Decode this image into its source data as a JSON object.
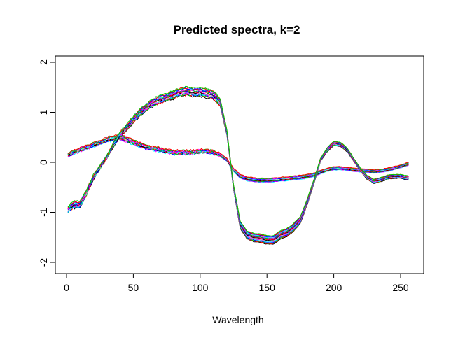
{
  "chart_data": {
    "type": "line",
    "title": "Predicted spectra, k=2",
    "xlabel": "Wavelength",
    "ylabel": "",
    "xlim": [
      0,
      256
    ],
    "ylim": [
      -2.2,
      2.2
    ],
    "xticks": [
      0,
      50,
      100,
      150,
      200,
      250
    ],
    "yticks": [
      -2,
      -1,
      0,
      1,
      2
    ],
    "xtick_labels": [
      "0",
      "50",
      "100",
      "150",
      "200",
      "250"
    ],
    "ytick_labels": [
      "-2",
      "-1",
      "0",
      "1",
      "2"
    ],
    "grid": false,
    "cluster_1": {
      "description": "upper group at wavelength 100, lower group at wavelength 150",
      "x": [
        1,
        5,
        10,
        15,
        20,
        25,
        30,
        35,
        40,
        45,
        50,
        55,
        60,
        65,
        70,
        75,
        80,
        85,
        90,
        95,
        100,
        105,
        110,
        115,
        120,
        125,
        130,
        135,
        140,
        145,
        150,
        155,
        160,
        165,
        170,
        175,
        180,
        185,
        190,
        195,
        200,
        205,
        210,
        215,
        220,
        225,
        230,
        235,
        240,
        245,
        250,
        256
      ],
      "mean": [
        -0.95,
        -0.85,
        -0.85,
        -0.6,
        -0.3,
        -0.1,
        0.1,
        0.35,
        0.55,
        0.7,
        0.85,
        1.0,
        1.1,
        1.2,
        1.25,
        1.3,
        1.35,
        1.4,
        1.42,
        1.4,
        1.4,
        1.38,
        1.35,
        1.2,
        0.6,
        -0.5,
        -1.25,
        -1.45,
        -1.5,
        -1.52,
        -1.55,
        -1.55,
        -1.45,
        -1.4,
        -1.3,
        -1.15,
        -0.8,
        -0.4,
        0.05,
        0.25,
        0.38,
        0.36,
        0.25,
        0.05,
        -0.15,
        -0.3,
        -0.38,
        -0.35,
        -0.3,
        -0.28,
        -0.28,
        -0.32
      ],
      "colors": [
        "#000000",
        "#ff0000",
        "#00cd00",
        "#0000ff",
        "#00ffff",
        "#ff00ff",
        "#bebebe",
        "#000000",
        "#ff0000",
        "#0000ff",
        "#00cd00",
        "#ff00ff",
        "#00ffff",
        "#0000ff",
        "#ff0000",
        "#00cd00"
      ]
    },
    "cluster_2": {
      "description": "lower group at wavelength 100, upper group at wavelength 150",
      "x": [
        1,
        5,
        10,
        15,
        20,
        25,
        30,
        35,
        40,
        45,
        50,
        55,
        60,
        65,
        70,
        75,
        80,
        85,
        90,
        95,
        100,
        105,
        110,
        115,
        120,
        125,
        130,
        135,
        140,
        145,
        150,
        155,
        160,
        165,
        170,
        175,
        180,
        185,
        190,
        195,
        200,
        205,
        210,
        215,
        220,
        225,
        230,
        235,
        240,
        245,
        250,
        256
      ],
      "mean": [
        0.15,
        0.2,
        0.25,
        0.3,
        0.35,
        0.4,
        0.45,
        0.48,
        0.5,
        0.45,
        0.4,
        0.35,
        0.3,
        0.28,
        0.25,
        0.22,
        0.2,
        0.2,
        0.2,
        0.2,
        0.22,
        0.22,
        0.2,
        0.15,
        0.05,
        -0.15,
        -0.28,
        -0.33,
        -0.35,
        -0.36,
        -0.36,
        -0.35,
        -0.34,
        -0.33,
        -0.31,
        -0.3,
        -0.28,
        -0.25,
        -0.2,
        -0.15,
        -0.12,
        -0.12,
        -0.13,
        -0.15,
        -0.16,
        -0.17,
        -0.18,
        -0.17,
        -0.15,
        -0.12,
        -0.08,
        -0.03
      ],
      "colors": [
        "#00ffff",
        "#ff00ff",
        "#0000ff",
        "#00cd00",
        "#ff0000",
        "#000000",
        "#bebebe",
        "#00ffff",
        "#0000ff",
        "#ff00ff",
        "#00cd00",
        "#ff0000"
      ]
    }
  }
}
